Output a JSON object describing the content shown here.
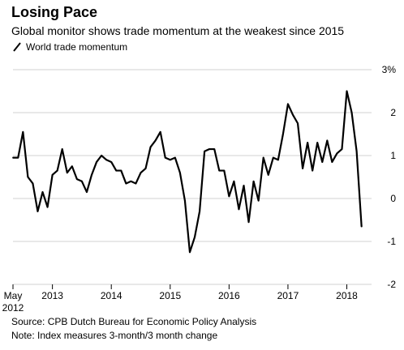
{
  "chart_data": {
    "type": "line",
    "title": "Losing Pace",
    "subtitle": "Global monitor shows trade momentum at the weakest since 2015",
    "xlabel": "",
    "ylabel": "",
    "legend": {
      "placement": "top-left",
      "entries": [
        "World trade momentum"
      ]
    },
    "grid": "horizontal",
    "ylim": [
      -2,
      3
    ],
    "xlim": [
      2012.33,
      2018.42
    ],
    "y_ticks": [
      {
        "value": 3,
        "label": "3%"
      },
      {
        "value": 2,
        "label": "2"
      },
      {
        "value": 1,
        "label": "1"
      },
      {
        "value": 0,
        "label": "0"
      },
      {
        "value": -1,
        "label": "-1"
      },
      {
        "value": -2,
        "label": "-2"
      }
    ],
    "x_ticks": [
      {
        "value": 2012.33,
        "label": "May",
        "label2": "2012"
      },
      {
        "value": 2013,
        "label": "2013"
      },
      {
        "value": 2014,
        "label": "2014"
      },
      {
        "value": 2015,
        "label": "2015"
      },
      {
        "value": 2016,
        "label": "2016"
      },
      {
        "value": 2017,
        "label": "2017"
      },
      {
        "value": 2018,
        "label": "2018"
      }
    ],
    "series": [
      {
        "name": "World trade momentum",
        "color": "#000000",
        "x": [
          "2012-05",
          "2012-06",
          "2012-07",
          "2012-08",
          "2012-09",
          "2012-10",
          "2012-11",
          "2012-12",
          "2013-01",
          "2013-02",
          "2013-03",
          "2013-04",
          "2013-05",
          "2013-06",
          "2013-07",
          "2013-08",
          "2013-09",
          "2013-10",
          "2013-11",
          "2013-12",
          "2014-01",
          "2014-02",
          "2014-03",
          "2014-04",
          "2014-05",
          "2014-06",
          "2014-07",
          "2014-08",
          "2014-09",
          "2014-10",
          "2014-11",
          "2014-12",
          "2015-01",
          "2015-02",
          "2015-03",
          "2015-04",
          "2015-05",
          "2015-06",
          "2015-07",
          "2015-08",
          "2015-09",
          "2015-10",
          "2015-11",
          "2015-12",
          "2016-01",
          "2016-02",
          "2016-03",
          "2016-04",
          "2016-05",
          "2016-06",
          "2016-07",
          "2016-08",
          "2016-09",
          "2016-10",
          "2016-11",
          "2016-12",
          "2017-01",
          "2017-02",
          "2017-03",
          "2017-04",
          "2017-05",
          "2017-06",
          "2017-07",
          "2017-08",
          "2017-09",
          "2017-10",
          "2017-11",
          "2017-12",
          "2018-01",
          "2018-02",
          "2018-03",
          "2018-04"
        ],
        "values": [
          0.95,
          0.95,
          1.55,
          0.5,
          0.35,
          -0.3,
          0.15,
          -0.2,
          0.55,
          0.65,
          1.15,
          0.6,
          0.75,
          0.45,
          0.4,
          0.15,
          0.55,
          0.85,
          1.0,
          0.9,
          0.85,
          0.65,
          0.65,
          0.35,
          0.4,
          0.35,
          0.6,
          0.7,
          1.2,
          1.35,
          1.55,
          0.95,
          0.9,
          0.95,
          0.6,
          -0.05,
          -1.25,
          -0.9,
          -0.3,
          1.1,
          1.15,
          1.15,
          0.65,
          0.65,
          0.05,
          0.4,
          -0.25,
          0.3,
          -0.55,
          0.4,
          -0.05,
          0.95,
          0.55,
          0.95,
          0.9,
          1.5,
          2.2,
          1.95,
          1.75,
          0.7,
          1.3,
          0.65,
          1.3,
          0.85,
          1.35,
          0.85,
          1.05,
          1.15,
          2.5,
          2.0,
          1.1,
          -0.65
        ]
      }
    ]
  },
  "footer": {
    "source": "Source: CPB Dutch Bureau for Economic Policy Analysis",
    "note": "Note: Index measures 3-month/3 month change"
  }
}
